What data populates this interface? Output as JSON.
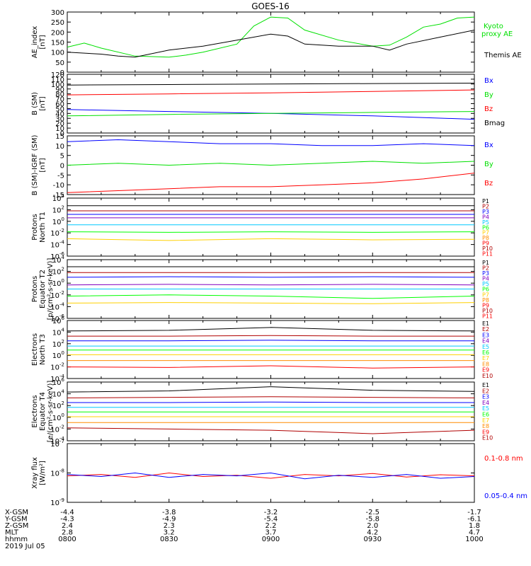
{
  "title": "GOES-16",
  "date": "2019 Jul 05",
  "colors": {
    "black": "#000000",
    "blue": "#0000ff",
    "green": "#00e000",
    "red": "#ff0000",
    "bright_green": "#00ff00",
    "cyan": "#00c8ff",
    "yellow": "#ffd000",
    "orange": "#ff8c00",
    "dark_red": "#b00000",
    "purple": "#8000c0"
  },
  "x_axis": {
    "time_range": [
      "08:00",
      "10:00"
    ],
    "rows": [
      {
        "label": "X-GSM",
        "values": [
          "-4.4",
          "-3.8",
          "-3.2",
          "-2.5",
          "-1.7"
        ]
      },
      {
        "label": "Y-GSM",
        "values": [
          "-4.3",
          "-4.9",
          "-5.4",
          "-5.8",
          "-6.1"
        ]
      },
      {
        "label": "Z-GSM",
        "values": [
          "2.4",
          "2.3",
          "2.2",
          "2.0",
          "1.8"
        ]
      },
      {
        "label": "MLT",
        "values": [
          "2.8",
          "3.2",
          "3.7",
          "4.2",
          "4.7"
        ]
      },
      {
        "label": "hhmm",
        "values": [
          "0800",
          "0830",
          "0900",
          "0930",
          "1000"
        ]
      }
    ]
  },
  "chart_data": [
    {
      "type": "line",
      "ylabel": "AE_index [nT]",
      "ylim": [
        0,
        300
      ],
      "yticks": [
        "0",
        "50",
        "100",
        "150",
        "200",
        "250",
        "300"
      ],
      "series": [
        {
          "name": "Kyoto proxy AE",
          "color": "green",
          "x": [
            "08:00",
            "08:05",
            "08:10",
            "08:20",
            "08:30",
            "08:35",
            "08:40",
            "08:50",
            "08:55",
            "09:00",
            "09:05",
            "09:10",
            "09:20",
            "09:30",
            "09:35",
            "09:40",
            "09:45",
            "09:50",
            "09:55",
            "10:00"
          ],
          "values": [
            125,
            145,
            120,
            80,
            75,
            85,
            100,
            140,
            230,
            275,
            270,
            210,
            160,
            130,
            135,
            175,
            225,
            240,
            270,
            275
          ]
        },
        {
          "name": "Themis AE",
          "color": "black",
          "x": [
            "08:00",
            "08:10",
            "08:15",
            "08:20",
            "08:30",
            "08:40",
            "08:50",
            "09:00",
            "09:05",
            "09:10",
            "09:20",
            "09:30",
            "09:35",
            "09:40",
            "09:50",
            "10:00"
          ],
          "values": [
            100,
            90,
            80,
            75,
            110,
            130,
            160,
            190,
            180,
            140,
            130,
            130,
            110,
            140,
            175,
            210
          ]
        }
      ]
    },
    {
      "type": "line",
      "ylabel": "B (SM) [nT]",
      "ylim": [
        0,
        120
      ],
      "yticks": [
        "0",
        "10",
        "20",
        "30",
        "40",
        "50",
        "60",
        "70",
        "80",
        "90",
        "100",
        "110",
        "120"
      ],
      "series": [
        {
          "name": "Bx",
          "color": "blue",
          "x": [
            "08:00",
            "08:30",
            "09:00",
            "09:30",
            "10:00"
          ],
          "values": [
            48,
            44,
            40,
            35,
            28
          ]
        },
        {
          "name": "By",
          "color": "green",
          "x": [
            "08:00",
            "08:30",
            "09:00",
            "09:30",
            "10:00"
          ],
          "values": [
            35,
            38,
            40,
            42,
            44
          ]
        },
        {
          "name": "Bz",
          "color": "red",
          "x": [
            "08:00",
            "08:30",
            "09:00",
            "09:30",
            "10:00"
          ],
          "values": [
            78,
            80,
            82,
            85,
            88
          ]
        },
        {
          "name": "Bmag",
          "color": "black",
          "x": [
            "08:00",
            "08:30",
            "09:00",
            "09:30",
            "10:00"
          ],
          "values": [
            98,
            99,
            100,
            101,
            102
          ]
        }
      ]
    },
    {
      "type": "line",
      "ylabel": "B (SM)-IGRF (SM) [nT]",
      "ylim": [
        -15,
        15
      ],
      "yticks": [
        "-15",
        "-10",
        "-5",
        "0",
        "5",
        "10",
        "15"
      ],
      "series": [
        {
          "name": "Bx",
          "color": "blue",
          "x": [
            "08:00",
            "08:15",
            "08:30",
            "08:45",
            "09:00",
            "09:15",
            "09:30",
            "09:45",
            "10:00"
          ],
          "values": [
            12,
            13,
            12,
            11,
            11,
            10,
            10,
            11,
            10
          ]
        },
        {
          "name": "By",
          "color": "green",
          "x": [
            "08:00",
            "08:15",
            "08:30",
            "08:45",
            "09:00",
            "09:15",
            "09:30",
            "09:45",
            "10:00"
          ],
          "values": [
            0,
            1,
            0,
            1,
            0,
            1,
            2,
            1,
            2
          ]
        },
        {
          "name": "Bz",
          "color": "red",
          "x": [
            "08:00",
            "08:15",
            "08:30",
            "08:45",
            "09:00",
            "09:15",
            "09:30",
            "09:45",
            "10:00"
          ],
          "values": [
            -14,
            -13,
            -12,
            -11,
            -11,
            -10,
            -9,
            -7,
            -4
          ]
        }
      ]
    },
    {
      "type": "line",
      "ylabel": "Protons North T1",
      "yscale": "log",
      "ylim_exp": [
        -6,
        4
      ],
      "ytick_exps": [
        -6,
        -4,
        -2,
        0,
        2,
        4
      ],
      "channel_labels": [
        "P1",
        "P2",
        "P3",
        "P4",
        "P5",
        "P6",
        "P7",
        "P8",
        "P9",
        "P10",
        "P11"
      ],
      "series": [
        {
          "name": "P1",
          "color": "black",
          "log10_values": [
            2.7,
            2.7,
            2.7,
            2.7,
            2.7
          ]
        },
        {
          "name": "P2",
          "color": "dark_red",
          "log10_values": [
            1.8,
            1.8,
            1.8,
            1.8,
            1.8
          ]
        },
        {
          "name": "P3",
          "color": "blue",
          "log10_values": [
            1.2,
            1.2,
            1.2,
            1.2,
            1.2
          ]
        },
        {
          "name": "P4",
          "color": "purple",
          "log10_values": [
            0.6,
            0.6,
            0.6,
            0.6,
            0.6
          ]
        },
        {
          "name": "P5",
          "color": "cyan",
          "log10_values": [
            -0.6,
            -0.6,
            -0.6,
            -0.6,
            -0.6
          ]
        },
        {
          "name": "P6",
          "color": "bright_green",
          "log10_values": [
            -1.8,
            -1.9,
            -1.8,
            -1.9,
            -1.8
          ]
        },
        {
          "name": "P7",
          "color": "yellow",
          "log10_values": [
            -3.0,
            -3.3,
            -3.0,
            -3.2,
            -3.1
          ]
        }
      ]
    },
    {
      "type": "line",
      "ylabel": "Protons Equator T2 [p/(cm^2-s-sr-keV)]",
      "yscale": "log",
      "ylim_exp": [
        -6,
        4
      ],
      "ytick_exps": [
        -6,
        -4,
        -2,
        0,
        2,
        4
      ],
      "channel_labels": [
        "P1",
        "P2",
        "P3",
        "P4",
        "P5",
        "P6",
        "P7",
        "P8",
        "P9",
        "P10",
        "P11"
      ],
      "series": [
        {
          "name": "P1",
          "color": "black",
          "log10_values": [
            2.8,
            2.8,
            2.8,
            2.8,
            2.8
          ]
        },
        {
          "name": "P2",
          "color": "dark_red",
          "log10_values": [
            1.8,
            1.8,
            1.8,
            1.8,
            1.8
          ]
        },
        {
          "name": "P3",
          "color": "blue",
          "log10_values": [
            1.0,
            1.1,
            1.0,
            1.1,
            1.0
          ]
        },
        {
          "name": "P4",
          "color": "purple",
          "log10_values": [
            -0.3,
            -0.2,
            -0.3,
            -0.2,
            -0.3
          ]
        },
        {
          "name": "P5",
          "color": "cyan",
          "log10_values": [
            -1.0,
            -1.0,
            -1.0,
            -1.0,
            -1.0
          ]
        },
        {
          "name": "P6",
          "color": "bright_green",
          "log10_values": [
            -2.2,
            -2.0,
            -2.2,
            -2.6,
            -2.2
          ]
        },
        {
          "name": "P7",
          "color": "yellow",
          "log10_values": [
            -3.4,
            -3.3,
            -3.4,
            -3.5,
            -3.3
          ]
        }
      ]
    },
    {
      "type": "line",
      "ylabel": "Electrons North T3",
      "yscale": "log",
      "ylim_exp": [
        -4,
        6
      ],
      "ytick_exps": [
        -4,
        -2,
        0,
        2,
        4,
        6
      ],
      "channel_labels": [
        "E1",
        "E2",
        "E3",
        "E4",
        "E5",
        "E6",
        "E7",
        "E8",
        "E9",
        "E10"
      ],
      "series": [
        {
          "name": "E1",
          "color": "black",
          "log10_values": [
            4.2,
            4.3,
            4.8,
            4.3,
            4.2
          ]
        },
        {
          "name": "E2",
          "color": "dark_red",
          "log10_values": [
            3.3,
            3.3,
            3.4,
            3.3,
            3.3
          ]
        },
        {
          "name": "E3",
          "color": "blue",
          "log10_values": [
            2.5,
            2.5,
            2.6,
            2.5,
            2.5
          ]
        },
        {
          "name": "E4",
          "color": "cyan",
          "log10_values": [
            1.6,
            1.6,
            1.6,
            1.6,
            1.6
          ]
        },
        {
          "name": "E5",
          "color": "bright_green",
          "log10_values": [
            0.9,
            0.9,
            0.9,
            0.9,
            0.9
          ]
        },
        {
          "name": "E6",
          "color": "yellow",
          "log10_values": [
            0.1,
            0.1,
            0.1,
            0.1,
            0.1
          ]
        },
        {
          "name": "E7",
          "color": "orange",
          "log10_values": [
            -0.9,
            -0.9,
            -0.9,
            -0.9,
            -0.9
          ]
        },
        {
          "name": "E8",
          "color": "red",
          "log10_values": [
            -2.0,
            -2.1,
            -1.8,
            -2.2,
            -2.0
          ]
        }
      ]
    },
    {
      "type": "line",
      "ylabel": "Electrons Equator T4 [e/(cm^2-s-sr-keV)]",
      "yscale": "log",
      "ylim_exp": [
        -4,
        6
      ],
      "ytick_exps": [
        -4,
        -2,
        0,
        2,
        4,
        6
      ],
      "channel_labels": [
        "E1",
        "E2",
        "E3",
        "E4",
        "E5",
        "E6",
        "E7",
        "E8",
        "E9",
        "E10"
      ],
      "series": [
        {
          "name": "E1",
          "color": "black",
          "log10_values": [
            4.3,
            4.5,
            5.2,
            4.6,
            4.4
          ]
        },
        {
          "name": "E2",
          "color": "dark_red",
          "log10_values": [
            3.3,
            3.4,
            3.5,
            3.4,
            3.3
          ]
        },
        {
          "name": "E3",
          "color": "blue",
          "log10_values": [
            2.5,
            2.5,
            2.6,
            2.5,
            2.5
          ]
        },
        {
          "name": "E4",
          "color": "cyan",
          "log10_values": [
            1.7,
            1.7,
            1.7,
            1.7,
            1.7
          ]
        },
        {
          "name": "E5",
          "color": "bright_green",
          "log10_values": [
            0.9,
            0.9,
            0.9,
            0.9,
            0.9
          ]
        },
        {
          "name": "E6",
          "color": "yellow",
          "log10_values": [
            0.1,
            0.1,
            0.1,
            0.1,
            0.1
          ]
        },
        {
          "name": "E7",
          "color": "orange",
          "log10_values": [
            -0.9,
            -0.9,
            -0.9,
            -0.9,
            -0.9
          ]
        },
        {
          "name": "E8",
          "color": "dark_red",
          "log10_values": [
            -1.8,
            -2.0,
            -2.2,
            -2.8,
            -2.2
          ]
        }
      ]
    },
    {
      "type": "line",
      "ylabel": "Xray flux [W/m^2]",
      "yscale": "log",
      "ylim_exp": [
        -9,
        -7
      ],
      "ytick_exps": [
        -9,
        -8,
        -7
      ],
      "series": [
        {
          "name": "0.1-0.8 nm",
          "color": "red",
          "log10_values": [
            -8.1,
            -8.05,
            -8.15,
            -8.0,
            -8.12,
            -8.08,
            -8.18,
            -8.05,
            -8.1,
            -8.02,
            -8.14,
            -8.06,
            -8.1
          ]
        },
        {
          "name": "0.05-0.4 nm",
          "color": "blue",
          "log10_values": [
            -8.05,
            -8.12,
            -8.0,
            -8.15,
            -8.05,
            -8.1,
            -8.0,
            -8.2,
            -8.08,
            -8.15,
            -8.05,
            -8.18,
            -8.12
          ]
        }
      ]
    }
  ],
  "labels": {
    "panel0_legend": [
      "Kyoto",
      "proxy AE",
      "Themis AE"
    ],
    "panel1_legend": [
      "Bx",
      "By",
      "Bz",
      "Bmag"
    ],
    "panel2_legend": [
      "Bx",
      "By",
      "Bz"
    ],
    "panel7_legend": [
      "0.1-0.8 nm",
      "0.05-0.4 nm"
    ],
    "ylabels": [
      [
        "AE_index",
        "[nT]"
      ],
      [
        "B (SM)",
        "[nT]"
      ],
      [
        "B (SM)-IGRF (SM)",
        "[nT]"
      ],
      [
        "Protons",
        "North T1"
      ],
      [
        "Protons",
        "Equator T2",
        "[p/(cm²-s-sr-keV)]"
      ],
      [
        "Electrons",
        "North T3"
      ],
      [
        "Electrons",
        "Equator T4",
        "[e/(cm²-s-sr-keV)]"
      ],
      [
        "Xray flux",
        "[W/m²]"
      ]
    ]
  }
}
